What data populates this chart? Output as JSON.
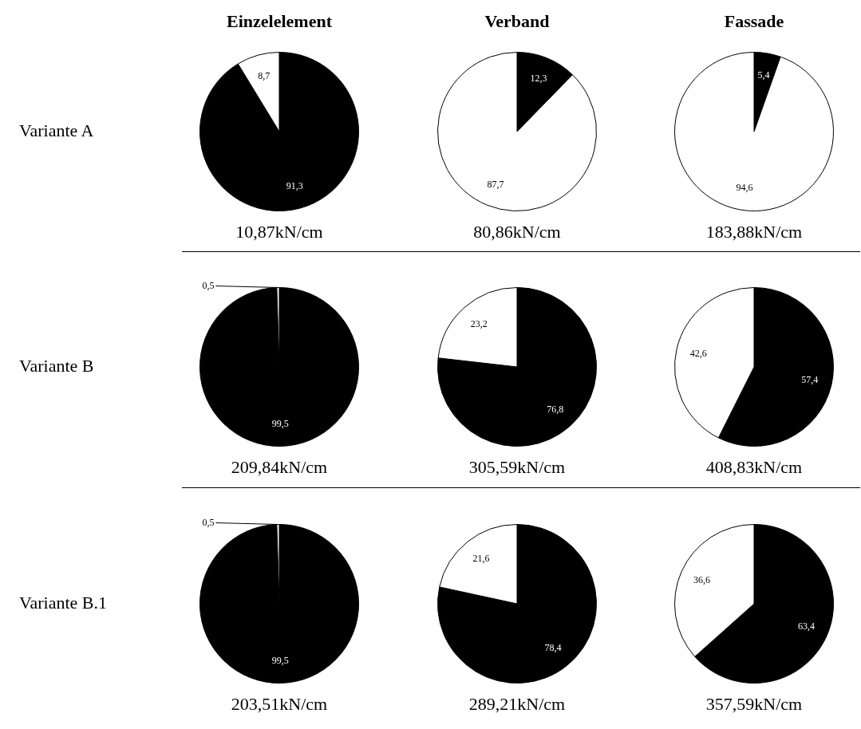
{
  "chart_data": [
    {
      "type": "pie",
      "title": "Einzelelement",
      "ylabel": "Variante A",
      "xlabel": "10,87kN/cm",
      "categories": [
        null,
        null
      ],
      "values": [
        91.3,
        8.7
      ],
      "colors": [
        "#000000",
        "#ffffff"
      ],
      "value_labels": [
        "91,3",
        "8,7"
      ]
    },
    {
      "type": "pie",
      "title": "Verband",
      "xlabel": "80,86kN/cm",
      "categories": [
        null,
        null
      ],
      "values": [
        12.3,
        87.7
      ],
      "colors": [
        "#000000",
        "#ffffff"
      ],
      "value_labels": [
        "12,3",
        "87,7"
      ]
    },
    {
      "type": "pie",
      "title": "Fassade",
      "xlabel": "183,88kN/cm",
      "categories": [
        null,
        null
      ],
      "values": [
        5.4,
        94.6
      ],
      "colors": [
        "#000000",
        "#ffffff"
      ],
      "value_labels": [
        "5,4",
        "94,6"
      ]
    },
    {
      "type": "pie",
      "ylabel": "Variante B",
      "xlabel": "209,84kN/cm",
      "categories": [
        null,
        null
      ],
      "values": [
        99.5,
        0.5
      ],
      "colors": [
        "#000000",
        "#ffffff"
      ],
      "value_labels": [
        "99,5",
        "0,5"
      ]
    },
    {
      "type": "pie",
      "xlabel": "305,59kN/cm",
      "categories": [
        null,
        null
      ],
      "values": [
        76.8,
        23.2
      ],
      "colors": [
        "#000000",
        "#ffffff"
      ],
      "value_labels": [
        "76,8",
        "23,2"
      ]
    },
    {
      "type": "pie",
      "xlabel": "408,83kN/cm",
      "categories": [
        null,
        null
      ],
      "values": [
        57.4,
        42.6
      ],
      "colors": [
        "#000000",
        "#ffffff"
      ],
      "value_labels": [
        "57,4",
        "42,6"
      ]
    },
    {
      "type": "pie",
      "ylabel": "Variante B.1",
      "xlabel": "203,51kN/cm",
      "categories": [
        null,
        null
      ],
      "values": [
        99.5,
        0.5
      ],
      "colors": [
        "#000000",
        "#ffffff"
      ],
      "value_labels": [
        "99,5",
        "0,5"
      ]
    },
    {
      "type": "pie",
      "xlabel": "289,21kN/cm",
      "categories": [
        null,
        null
      ],
      "values": [
        78.4,
        21.6
      ],
      "colors": [
        "#000000",
        "#ffffff"
      ],
      "value_labels": [
        "78,4",
        "21,6"
      ]
    },
    {
      "type": "pie",
      "xlabel": "357,59kN/cm",
      "categories": [
        null,
        null
      ],
      "values": [
        63.4,
        36.6
      ],
      "colors": [
        "#000000",
        "#ffffff"
      ],
      "value_labels": [
        "63,4",
        "36,6"
      ]
    }
  ]
}
